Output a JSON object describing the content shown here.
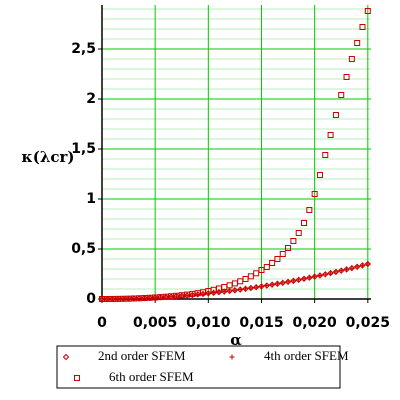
{
  "chart_data": {
    "type": "scatter",
    "xlabel": "α",
    "ylabel": "κ(λcr)",
    "x": [
      0,
      0.0005,
      0.001,
      0.0015,
      0.002,
      0.0025,
      0.003,
      0.0035,
      0.004,
      0.0045,
      0.005,
      0.0055,
      0.006,
      0.0065,
      0.007,
      0.0075,
      0.008,
      0.0085,
      0.009,
      0.0095,
      0.01,
      0.0105,
      0.011,
      0.0115,
      0.012,
      0.0125,
      0.013,
      0.0135,
      0.014,
      0.0145,
      0.015,
      0.0155,
      0.016,
      0.0165,
      0.017,
      0.0175,
      0.018,
      0.0185,
      0.019,
      0.0195,
      0.02,
      0.0205,
      0.021,
      0.0215,
      0.022,
      0.0225,
      0.023,
      0.0235,
      0.024,
      0.0245,
      0.025
    ],
    "series": [
      {
        "name": "2nd order SFEM",
        "marker": "diamond",
        "color": "#cc0000",
        "values": [
          0,
          0.0001,
          0.0006,
          0.0013,
          0.0022,
          0.0035,
          0.005,
          0.0069,
          0.009,
          0.0113,
          0.014,
          0.0169,
          0.0202,
          0.0237,
          0.0274,
          0.0315,
          0.0358,
          0.0405,
          0.0454,
          0.0505,
          0.056,
          0.0617,
          0.0678,
          0.0741,
          0.0806,
          0.0875,
          0.0946,
          0.1021,
          0.1098,
          0.1177,
          0.126,
          0.1345,
          0.1434,
          0.1525,
          0.1618,
          0.1715,
          0.1814,
          0.1917,
          0.2022,
          0.2129,
          0.224,
          0.2353,
          0.247,
          0.2589,
          0.271,
          0.2835,
          0.2962,
          0.3093,
          0.3226,
          0.3361,
          0.35
        ]
      },
      {
        "name": "4th order SFEM",
        "marker": "plus",
        "color": "#cc0000",
        "values": [
          0,
          0.0001,
          0.0006,
          0.0013,
          0.0022,
          0.0035,
          0.005,
          0.0069,
          0.009,
          0.0113,
          0.014,
          0.0169,
          0.0202,
          0.0237,
          0.0274,
          0.0315,
          0.0358,
          0.0405,
          0.0454,
          0.0505,
          0.056,
          0.0617,
          0.0678,
          0.0741,
          0.0806,
          0.0875,
          0.0946,
          0.1021,
          0.1098,
          0.1177,
          0.126,
          0.1345,
          0.1434,
          0.1525,
          0.1618,
          0.1715,
          0.1814,
          0.1917,
          0.2022,
          0.2129,
          0.224,
          0.2353,
          0.247,
          0.2589,
          0.271,
          0.2835,
          0.2962,
          0.3093,
          0.3226,
          0.3361,
          0.35
        ]
      },
      {
        "name": "6th order SFEM",
        "marker": "square",
        "color": "#cc0000",
        "values": [
          0,
          0.0001,
          0.0006,
          0.0013,
          0.0023,
          0.0036,
          0.0053,
          0.0073,
          0.0096,
          0.0123,
          0.0154,
          0.019,
          0.023,
          0.0275,
          0.0325,
          0.038,
          0.0442,
          0.051,
          0.0585,
          0.0668,
          0.08,
          0.092,
          0.105,
          0.12,
          0.137,
          0.156,
          0.177,
          0.2,
          0.227,
          0.257,
          0.29,
          0.32,
          0.36,
          0.4,
          0.45,
          0.51,
          0.58,
          0.66,
          0.76,
          0.89,
          1.05,
          1.24,
          1.44,
          1.64,
          1.84,
          2.04,
          2.22,
          2.4,
          2.56,
          2.72,
          2.88
        ]
      }
    ],
    "xlim": [
      0,
      0.0253
    ],
    "ylim": [
      0,
      2.94
    ],
    "xticks": [
      0,
      {
        "value": 0.005,
        "label": "0,005"
      },
      {
        "value": 0.01,
        "label": "0,010"
      },
      {
        "value": 0.015,
        "label": "0,015"
      },
      {
        "value": 0.02,
        "label": "0,020"
      },
      {
        "value": 0.025,
        "label": "0,025"
      }
    ],
    "yticks": [
      0,
      {
        "value": 0.5,
        "label": "0,5"
      },
      1,
      {
        "value": 1.5,
        "label": "1,5"
      },
      2,
      {
        "value": 2.5,
        "label": "2,5"
      }
    ],
    "grid": true,
    "grid_color": "#00cc00",
    "minor_grid_color": "#b8f0b8",
    "legend": "bottom"
  }
}
